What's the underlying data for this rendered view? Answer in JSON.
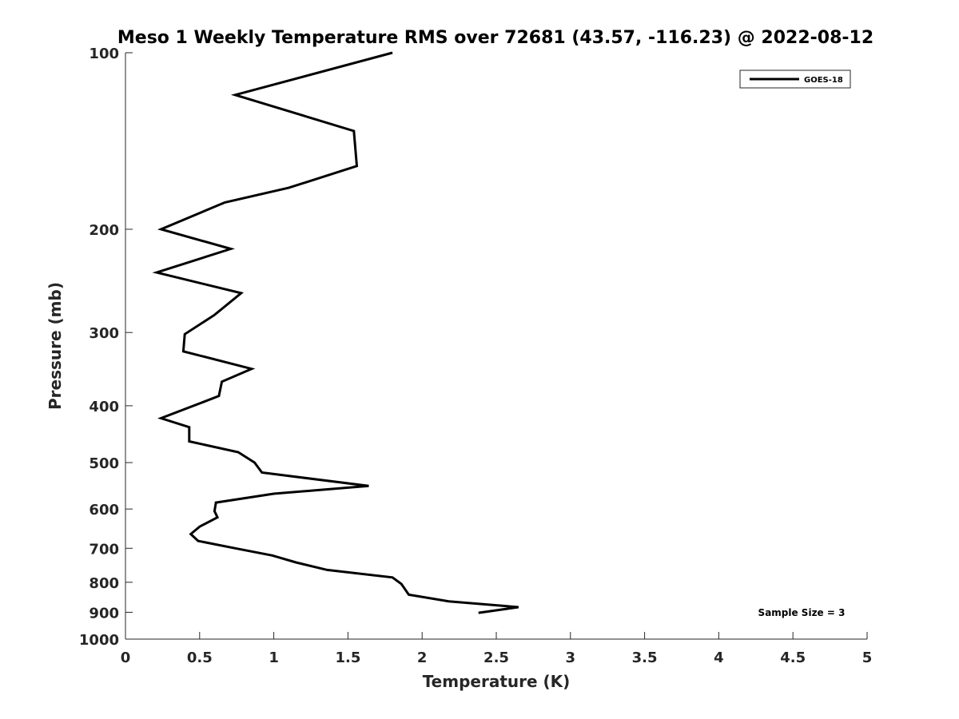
{
  "chart_data": {
    "type": "line",
    "title": "Meso 1 Weekly Temperature RMS over 72681 (43.57, -116.23) @ 2022-08-12",
    "xlabel": "Temperature (K)",
    "ylabel": "Pressure (mb)",
    "xlim": [
      0,
      5
    ],
    "ylim": [
      100,
      1000
    ],
    "yscale": "log",
    "y_reversed": true,
    "grid": false,
    "legend_position": "top-right",
    "x_ticks": [
      0,
      0.5,
      1,
      1.5,
      2,
      2.5,
      3,
      3.5,
      4,
      4.5,
      5
    ],
    "x_tick_labels": [
      "0",
      "0.5",
      "1",
      "1.5",
      "2",
      "2.5",
      "3",
      "3.5",
      "4",
      "4.5",
      "5"
    ],
    "y_ticks": [
      100,
      200,
      300,
      400,
      500,
      600,
      700,
      800,
      900,
      1000
    ],
    "y_tick_labels": [
      "100",
      "200",
      "300",
      "400",
      "500",
      "600",
      "700",
      "800",
      "900",
      "1000"
    ],
    "annotation": "Sample Size = 3",
    "series": [
      {
        "name": "GOES-18",
        "color": "#000000",
        "points": [
          {
            "x": 1.8,
            "p": 100
          },
          {
            "x": 0.74,
            "p": 118
          },
          {
            "x": 1.54,
            "p": 136
          },
          {
            "x": 1.56,
            "p": 156
          },
          {
            "x": 1.1,
            "p": 170
          },
          {
            "x": 0.67,
            "p": 180
          },
          {
            "x": 0.24,
            "p": 200
          },
          {
            "x": 0.71,
            "p": 216
          },
          {
            "x": 0.21,
            "p": 237
          },
          {
            "x": 0.78,
            "p": 257
          },
          {
            "x": 0.6,
            "p": 280
          },
          {
            "x": 0.4,
            "p": 302
          },
          {
            "x": 0.39,
            "p": 323
          },
          {
            "x": 0.85,
            "p": 346
          },
          {
            "x": 0.65,
            "p": 364
          },
          {
            "x": 0.63,
            "p": 385
          },
          {
            "x": 0.24,
            "p": 420
          },
          {
            "x": 0.43,
            "p": 435
          },
          {
            "x": 0.43,
            "p": 460
          },
          {
            "x": 0.76,
            "p": 480
          },
          {
            "x": 0.87,
            "p": 500
          },
          {
            "x": 0.92,
            "p": 520
          },
          {
            "x": 1.64,
            "p": 548
          },
          {
            "x": 1.0,
            "p": 565
          },
          {
            "x": 0.61,
            "p": 585
          },
          {
            "x": 0.6,
            "p": 605
          },
          {
            "x": 0.62,
            "p": 620
          },
          {
            "x": 0.5,
            "p": 643
          },
          {
            "x": 0.44,
            "p": 662
          },
          {
            "x": 0.49,
            "p": 680
          },
          {
            "x": 0.74,
            "p": 700
          },
          {
            "x": 0.99,
            "p": 720
          },
          {
            "x": 1.15,
            "p": 740
          },
          {
            "x": 1.36,
            "p": 762
          },
          {
            "x": 1.8,
            "p": 785
          },
          {
            "x": 1.86,
            "p": 805
          },
          {
            "x": 1.91,
            "p": 840
          },
          {
            "x": 2.18,
            "p": 862
          },
          {
            "x": 2.65,
            "p": 882
          },
          {
            "x": 2.38,
            "p": 902
          }
        ]
      }
    ]
  }
}
